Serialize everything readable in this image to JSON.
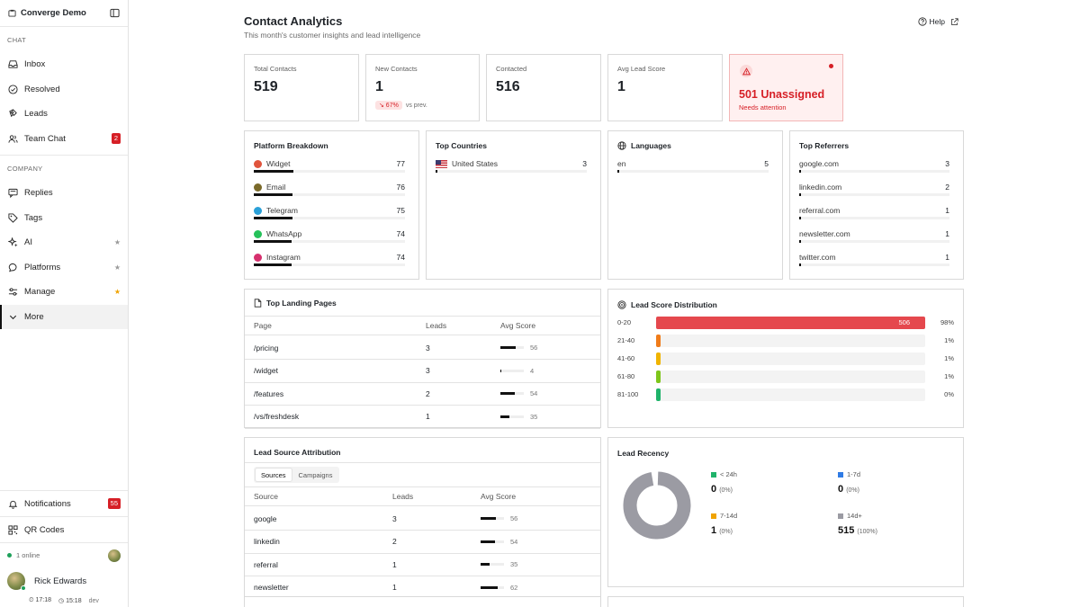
{
  "sidebar": {
    "workspace": "Converge Demo",
    "section_chat": "CHAT",
    "section_company": "COMPANY",
    "chat_items": [
      {
        "label": "Inbox",
        "icon": "inbox-icon"
      },
      {
        "label": "Resolved",
        "icon": "check-circle-icon"
      },
      {
        "label": "Leads",
        "icon": "magnet-icon"
      },
      {
        "label": "Team Chat",
        "icon": "users-icon",
        "badge": "2"
      }
    ],
    "company_items": [
      {
        "label": "Replies",
        "icon": "message-icon"
      },
      {
        "label": "Tags",
        "icon": "tag-icon"
      },
      {
        "label": "AI",
        "icon": "sparkle-icon"
      },
      {
        "label": "Platforms",
        "icon": "chat-bubble-icon"
      },
      {
        "label": "Manage",
        "icon": "sliders-icon"
      },
      {
        "label": "More",
        "icon": "chevron-down-icon"
      }
    ],
    "notifications": {
      "label": "Notifications",
      "badge": "55"
    },
    "qr_codes": "QR Codes",
    "online": "1 online",
    "user": "Rick Edwards",
    "meta": {
      "time1": "17:18",
      "time2": "15:18",
      "env": "dev"
    }
  },
  "header": {
    "title": "Contact Analytics",
    "subtitle": "This month's customer insights and lead intelligence",
    "help": "Help"
  },
  "stats": {
    "total": {
      "label": "Total Contacts",
      "value": "519"
    },
    "new": {
      "label": "New Contacts",
      "value": "1",
      "trend": "↘ 67%",
      "trend_suffix": "vs prev."
    },
    "contacted": {
      "label": "Contacted",
      "value": "516"
    },
    "avg": {
      "label": "Avg Lead Score",
      "value": "1"
    },
    "unassigned": {
      "value": "501 Unassigned",
      "note": "Needs attention"
    }
  },
  "platform": {
    "title": "Platform Breakdown",
    "max": 77,
    "rows": [
      {
        "name": "Widget",
        "count": 77,
        "color": "#e0543c"
      },
      {
        "name": "Email",
        "count": 76,
        "color": "#7a6a2a"
      },
      {
        "name": "Telegram",
        "count": 75,
        "color": "#2aa0d8"
      },
      {
        "name": "WhatsApp",
        "count": 74,
        "color": "#25c15a"
      },
      {
        "name": "Instagram",
        "count": 74,
        "color": "#d6306e"
      }
    ]
  },
  "countries": {
    "title": "Top Countries",
    "rows": [
      {
        "name": "United States",
        "count": 3
      }
    ]
  },
  "languages": {
    "title": "Languages",
    "rows": [
      {
        "name": "en",
        "count": 5
      }
    ]
  },
  "referrers": {
    "title": "Top Referrers",
    "rows": [
      {
        "name": "google.com",
        "count": 3
      },
      {
        "name": "linkedin.com",
        "count": 2
      },
      {
        "name": "referral.com",
        "count": 1
      },
      {
        "name": "newsletter.com",
        "count": 1
      },
      {
        "name": "twitter.com",
        "count": 1
      }
    ]
  },
  "landing": {
    "title": "Top Landing Pages",
    "cols": [
      "Page",
      "Leads",
      "Avg Score"
    ],
    "rows": [
      {
        "page": "/pricing",
        "leads": "3",
        "score": 56
      },
      {
        "page": "/widget",
        "leads": "3",
        "score": 4
      },
      {
        "page": "/features",
        "leads": "2",
        "score": 54
      },
      {
        "page": "/vs/freshdesk",
        "leads": "1",
        "score": 35
      }
    ]
  },
  "distribution": {
    "title": "Lead Score Distribution",
    "rows": [
      {
        "range": "0-20",
        "count": "506",
        "pct": "98%",
        "value": 98,
        "color": "#e5484d"
      },
      {
        "range": "21-40",
        "count": "",
        "pct": "1%",
        "value": 1,
        "color": "#f07c1a"
      },
      {
        "range": "41-60",
        "count": "",
        "pct": "1%",
        "value": 1,
        "color": "#f0b400"
      },
      {
        "range": "61-80",
        "count": "",
        "pct": "1%",
        "value": 1,
        "color": "#7ec61b"
      },
      {
        "range": "81-100",
        "count": "",
        "pct": "0%",
        "value": 0,
        "color": "#1fb36a"
      }
    ]
  },
  "attribution": {
    "title": "Lead Source Attribution",
    "tabs": [
      "Sources",
      "Campaigns"
    ],
    "cols": [
      "Source",
      "Leads",
      "Avg Score"
    ],
    "rows": [
      {
        "source": "google",
        "leads": "3",
        "score": 56
      },
      {
        "source": "linkedin",
        "leads": "2",
        "score": 54
      },
      {
        "source": "referral",
        "leads": "1",
        "score": 35
      },
      {
        "source": "newsletter",
        "leads": "1",
        "score": 62
      }
    ]
  },
  "recency": {
    "title": "Lead Recency",
    "items": [
      {
        "label": "< 24h",
        "value": "0",
        "pct": "(0%)",
        "color": "#1fb36a"
      },
      {
        "label": "1-7d",
        "value": "0",
        "pct": "(0%)",
        "color": "#2f7be5"
      },
      {
        "label": "7-14d",
        "value": "1",
        "pct": "(0%)",
        "color": "#f0a300"
      },
      {
        "label": "14d+",
        "value": "515",
        "pct": "(100%)",
        "color": "#9b9ba3"
      }
    ]
  }
}
